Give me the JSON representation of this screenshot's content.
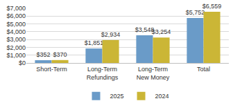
{
  "chart_data": {
    "type": "bar",
    "categories": [
      "Short-Term",
      "Long-Term Refundings",
      "Long-Term New Money",
      "Total"
    ],
    "series": [
      {
        "name": "2025",
        "color": "#6a9bc8",
        "values": [
          352,
          1851,
          3548,
          5752
        ],
        "value_labels": [
          "$352",
          "$1,851",
          "$3,548",
          "$5,752"
        ]
      },
      {
        "name": "2024",
        "color": "#cbb636",
        "values": [
          370,
          2934,
          3254,
          6559
        ],
        "value_labels": [
          "$370",
          "$2,934",
          "$3,254",
          "$6,559"
        ]
      }
    ],
    "ylim": [
      0,
      7000
    ],
    "yticks": [
      {
        "value": 0,
        "label": "$0"
      },
      {
        "value": 1000,
        "label": "$1,000"
      },
      {
        "value": 2000,
        "label": "$2,000"
      },
      {
        "value": 3000,
        "label": "$3,000"
      },
      {
        "value": 4000,
        "label": "$4,000"
      },
      {
        "value": 5000,
        "label": "$5,000"
      },
      {
        "value": 6000,
        "label": "$6,000"
      },
      {
        "value": 7000,
        "label": "$7,000"
      }
    ],
    "grid": true,
    "data_labels": true,
    "legend": "bottom"
  }
}
